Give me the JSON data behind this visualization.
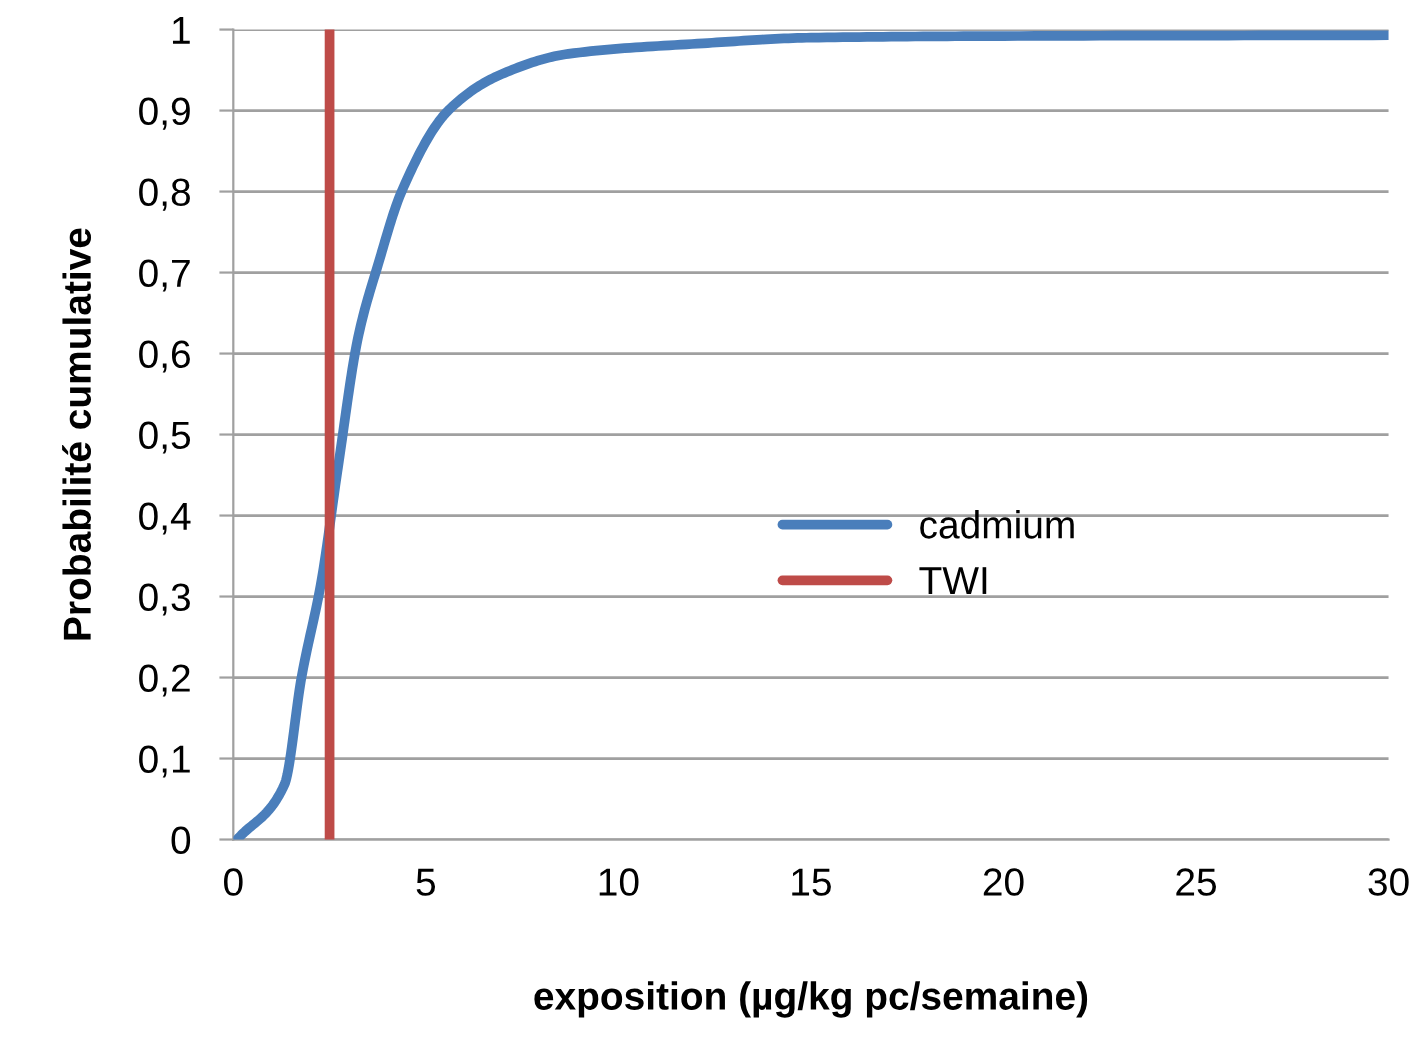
{
  "chart_data": {
    "type": "line",
    "xlabel": "exposition (µg/kg pc/semaine)",
    "ylabel": "Probabilité cumulative",
    "series": [
      {
        "name": "cadmium",
        "color": "#4a7ebb",
        "x": [
          0.1,
          1.33,
          1.77,
          2.29,
          2.72,
          3.24,
          3.76,
          4.37,
          5.58,
          6.97,
          8.7,
          12.2,
          15,
          20,
          30
        ],
        "values": [
          0,
          0.068,
          0.2,
          0.32,
          0.46,
          0.62,
          0.71,
          0.8,
          0.9,
          0.945,
          0.97,
          0.983,
          0.99,
          0.992,
          0.993
        ]
      },
      {
        "name": "TWI",
        "color": "#be4b48",
        "x": [
          2.5,
          2.5
        ],
        "values": [
          0,
          1
        ]
      }
    ],
    "xlim": [
      0,
      30
    ],
    "xticks": [
      0,
      5,
      10,
      15,
      20,
      25,
      30
    ],
    "ylim": [
      0,
      1
    ],
    "yticks": [
      {
        "value": 0,
        "label": "0"
      },
      {
        "value": 0.1,
        "label": "0,1"
      },
      {
        "value": 0.2,
        "label": "0,2"
      },
      {
        "value": 0.3,
        "label": "0,3"
      },
      {
        "value": 0.4,
        "label": "0,4"
      },
      {
        "value": 0.5,
        "label": "0,5"
      },
      {
        "value": 0.6,
        "label": "0,6"
      },
      {
        "value": 0.7,
        "label": "0,7"
      },
      {
        "value": 0.8,
        "label": "0,8"
      },
      {
        "value": 0.9,
        "label": "0,9"
      },
      {
        "value": 1,
        "label": "1"
      }
    ],
    "grid": "y",
    "legend": "center right",
    "marker": "none",
    "line_style": "solid"
  }
}
